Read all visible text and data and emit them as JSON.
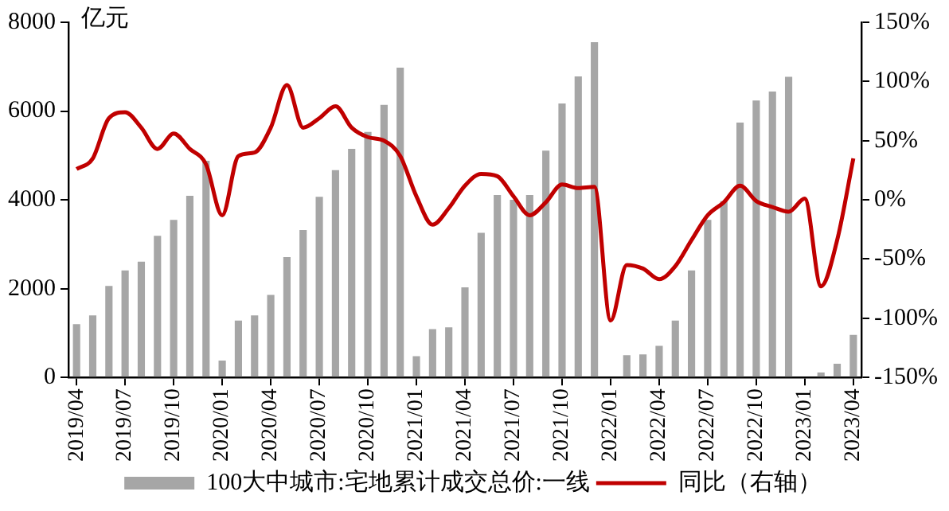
{
  "chart_data": {
    "type": "bar",
    "categories": [
      "2019/04",
      null,
      null,
      "2019/07",
      null,
      null,
      "2019/10",
      null,
      null,
      "2020/01",
      null,
      null,
      "2020/04",
      null,
      null,
      "2020/07",
      null,
      null,
      "2020/10",
      null,
      null,
      "2021/01",
      null,
      null,
      "2021/04",
      null,
      null,
      "2021/07",
      null,
      null,
      "2021/10",
      null,
      null,
      "2022/01",
      null,
      null,
      "2022/04",
      null,
      null,
      "2022/07",
      null,
      null,
      "2022/10",
      null,
      null,
      "2023/01",
      null,
      null,
      "2023/04"
    ],
    "series": [
      {
        "name": "100大中城市:宅地累计成交总价:一线",
        "color": "#a6a6a6",
        "values": [
          1200,
          1400,
          2060,
          2410,
          2610,
          3190,
          3550,
          4090,
          4880,
          380,
          1280,
          1400,
          1860,
          2710,
          3320,
          4070,
          4670,
          5150,
          5530,
          6140,
          6980,
          480,
          1090,
          1130,
          2030,
          3260,
          4110,
          4000,
          4110,
          5110,
          6170,
          6780,
          7550,
          null,
          500,
          520,
          710,
          1280,
          2410,
          3550,
          3970,
          5740,
          6240,
          6440,
          6770,
          null,
          110,
          310,
          960
        ]
      },
      {
        "name": "同比（右轴）",
        "type": "line",
        "axis": "y2",
        "color": "#c00000",
        "values": [
          26,
          35,
          69,
          74,
          61,
          43,
          56,
          43,
          30,
          -13,
          37,
          40,
          61,
          97,
          61,
          69,
          79,
          61,
          53,
          50,
          37,
          3,
          -21,
          -7,
          12,
          22,
          20,
          3,
          -13,
          -2,
          13,
          10,
          11,
          -102,
          -55,
          -58,
          -67,
          -56,
          -34,
          -13,
          -2,
          12,
          -1,
          -6,
          -10,
          1,
          -73,
          -34,
          35
        ]
      }
    ],
    "ylabel": "亿元",
    "ylim": [
      0,
      8000
    ],
    "yticks": [
      0,
      2000,
      4000,
      6000,
      8000
    ],
    "y2lim": [
      -150,
      150
    ],
    "y2ticks": [
      {
        "value": -150,
        "label": "-150%"
      },
      {
        "value": -100,
        "label": "-100%"
      },
      {
        "value": -50,
        "label": "-50%"
      },
      {
        "value": 0,
        "label": "0%"
      },
      {
        "value": 50,
        "label": "50%"
      },
      {
        "value": 100,
        "label": "100%"
      },
      {
        "value": 150,
        "label": "150%"
      }
    ],
    "grid": false,
    "legend": "bottom",
    "marker": "none",
    "line_style": "solid"
  }
}
